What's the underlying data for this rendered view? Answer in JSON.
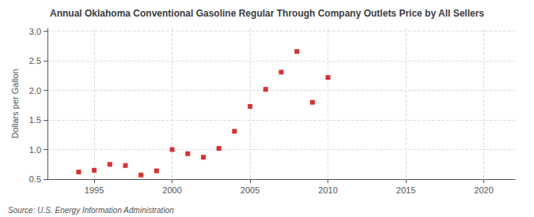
{
  "chart_data": {
    "type": "scatter",
    "title": "Annual Oklahoma Conventional Gasoline Regular Through Company Outlets Price by All Sellers",
    "ylabel": "Dollars per Gallon",
    "annotations": [
      "Source: U.S. Energy Information Administration"
    ],
    "x": [
      1994,
      1995,
      1996,
      1997,
      1998,
      1999,
      2000,
      2001,
      2002,
      2003,
      2004,
      2005,
      2006,
      2007,
      2008,
      2009,
      2010
    ],
    "values": [
      0.62,
      0.65,
      0.75,
      0.73,
      0.57,
      0.64,
      1.0,
      0.93,
      0.87,
      1.02,
      1.31,
      1.73,
      2.02,
      2.31,
      2.66,
      1.8,
      2.22
    ],
    "color": "#cc0000",
    "marker": "square",
    "xlim": [
      1992,
      2022
    ],
    "xticks": [
      1995,
      2000,
      2005,
      2010,
      2015,
      2020
    ],
    "ylim": [
      0.5,
      3.05
    ],
    "yticks": [
      0.5,
      {
        "value": 1,
        "label": "1.0"
      },
      1.5,
      {
        "value": 2,
        "label": "2.0"
      },
      2.5,
      {
        "value": 3,
        "label": "3.0"
      }
    ],
    "grid": true
  }
}
